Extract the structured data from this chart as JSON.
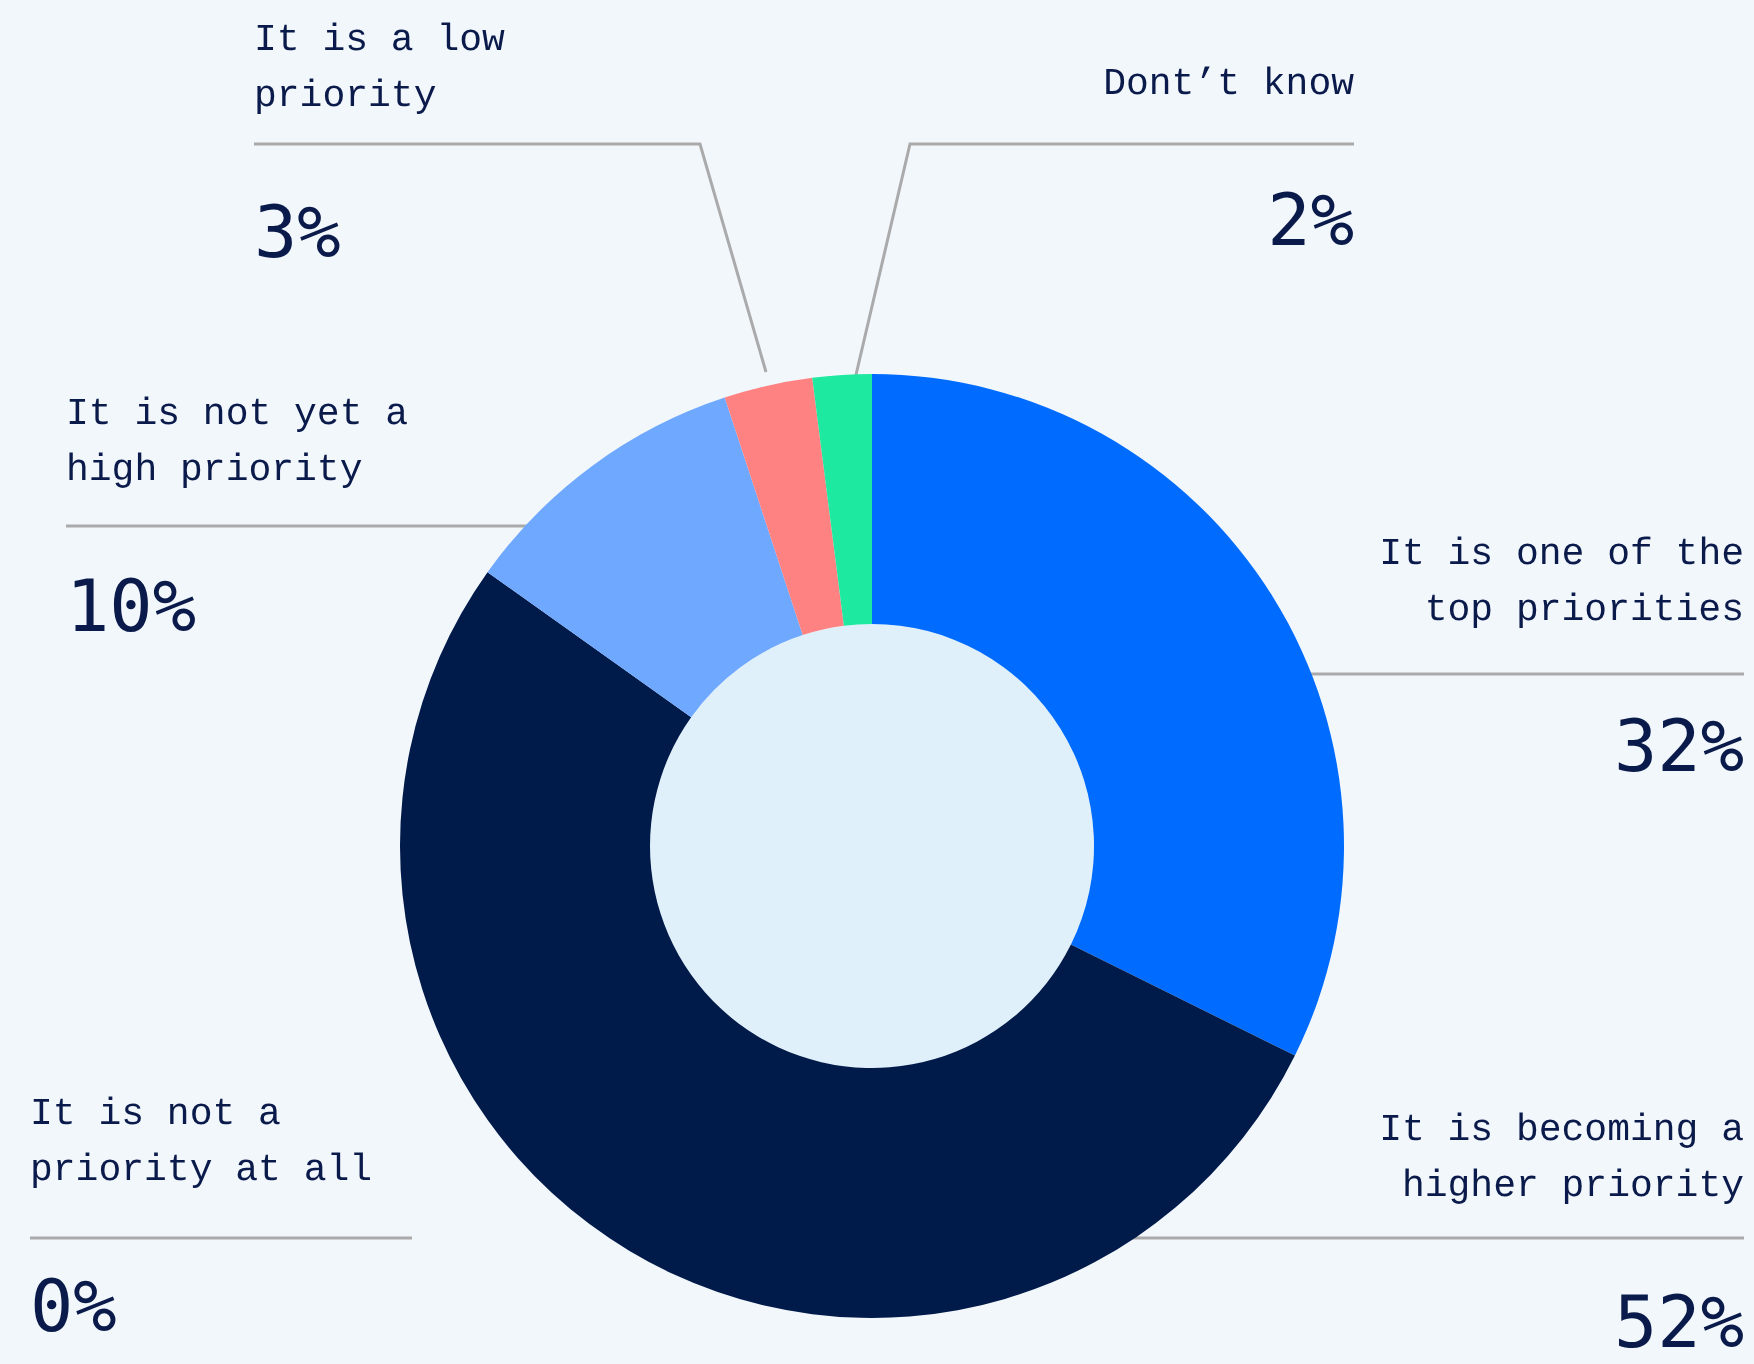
{
  "chart_data": {
    "type": "donut",
    "categories": [
      "It is one of the top priorities",
      "It is becoming a higher priority",
      "It is not a priority at all",
      "It is not yet a high priority",
      "It is a low priority",
      "Dont’t know"
    ],
    "values": [
      32,
      52,
      0,
      10,
      3,
      2
    ],
    "colors": [
      "#006cff",
      "#001a4a",
      "#9aa6b8",
      "#6fa8ff",
      "#ff8282",
      "#1deaa0"
    ],
    "value_labels": [
      "32%",
      "52%",
      "0%",
      "10%",
      "3%",
      "2%"
    ],
    "legend": false
  }
}
